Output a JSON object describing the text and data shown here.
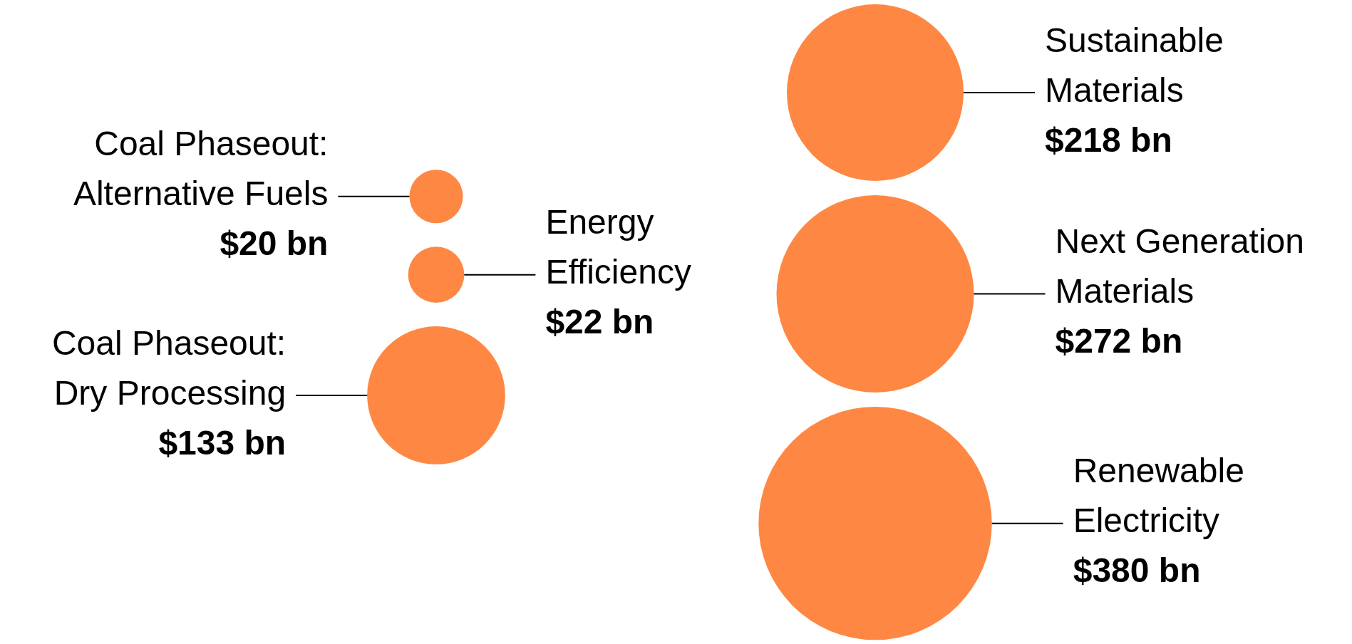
{
  "chart_data": {
    "type": "other",
    "categories": [
      "Coal Phaseout:\nAlternative Fuels",
      "Energy\nEfficiency",
      "Coal Phaseout:\nDry Processing",
      "Sustainable\nMaterials",
      "Next Generation\nMaterials",
      "Renewable\nElectricity"
    ],
    "values": [
      20,
      22,
      133,
      218,
      272,
      380
    ],
    "value_labels": [
      "$20 bn",
      "$22 bn",
      "$133 bn",
      "$218 bn",
      "$272 bn",
      "$380 bn"
    ],
    "color": "#fe8843"
  }
}
